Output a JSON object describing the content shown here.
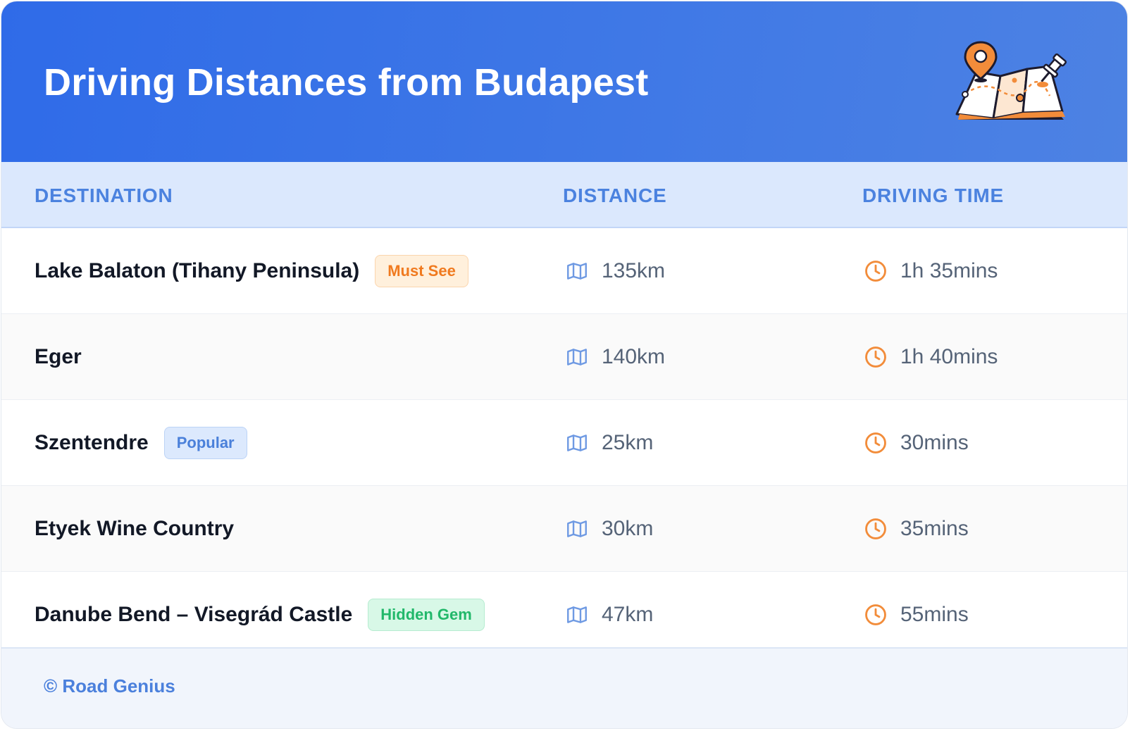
{
  "header": {
    "title": "Driving Distances from Budapest",
    "illustration_icon": "map-with-pins-icon"
  },
  "table": {
    "columns": [
      "DESTINATION",
      "DISTANCE",
      "DRIVING TIME"
    ],
    "rows": [
      {
        "destination": "Lake Balaton (Tihany Peninsula)",
        "badge": "Must See",
        "badge_color": "#f07a1f",
        "distance": "135km",
        "time": "1h 35mins"
      },
      {
        "destination": "Eger",
        "badge": "",
        "badge_color": "",
        "distance": "140km",
        "time": "1h 40mins"
      },
      {
        "destination": "Szentendre",
        "badge": "Popular",
        "badge_color": "#4a80da",
        "distance": "25km",
        "time": "30mins"
      },
      {
        "destination": "Etyek Wine Country",
        "badge": "",
        "badge_color": "",
        "distance": "30km",
        "time": "35mins"
      },
      {
        "destination": "Danube Bend – Visegrád Castle",
        "badge": "Hidden Gem",
        "badge_color": "#21b86a",
        "distance": "47km",
        "time": "55mins"
      }
    ],
    "distance_icon": "map-icon",
    "time_icon": "clock-icon"
  },
  "footer": {
    "text": "© Road Genius"
  },
  "colors": {
    "header_gradient_start": "#2f6be8",
    "header_gradient_end": "#4d82e3",
    "column_header_text": "#4b82df",
    "clock_accent": "#f28c3a",
    "map_icon": "#6f9ae3"
  }
}
